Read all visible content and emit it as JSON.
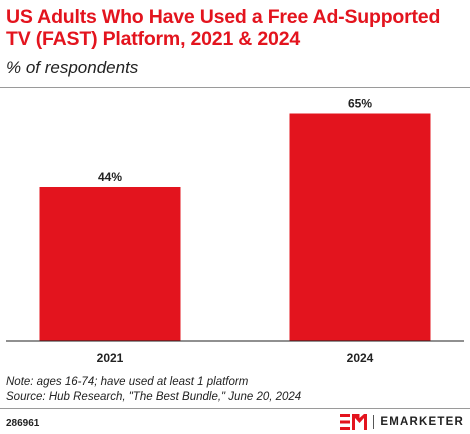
{
  "chart_data": {
    "type": "bar",
    "title": "US Adults Who Have Used a Free Ad-Supported TV (FAST) Platform, 2021 & 2024",
    "subtitle": "% of respondents",
    "categories": [
      "2021",
      "2024"
    ],
    "values": [
      44,
      65
    ],
    "value_labels": [
      "44%",
      "65%"
    ],
    "ylim": [
      0,
      70
    ],
    "grid": false,
    "bar_color": "#e3141e"
  },
  "footer": {
    "note": "Note: ages 16-74; have used at least 1 platform",
    "source": "Source: Hub Research, \"The Best Bundle,\" June 20, 2024",
    "chart_id": "286961",
    "brand": "EMARKETER"
  }
}
